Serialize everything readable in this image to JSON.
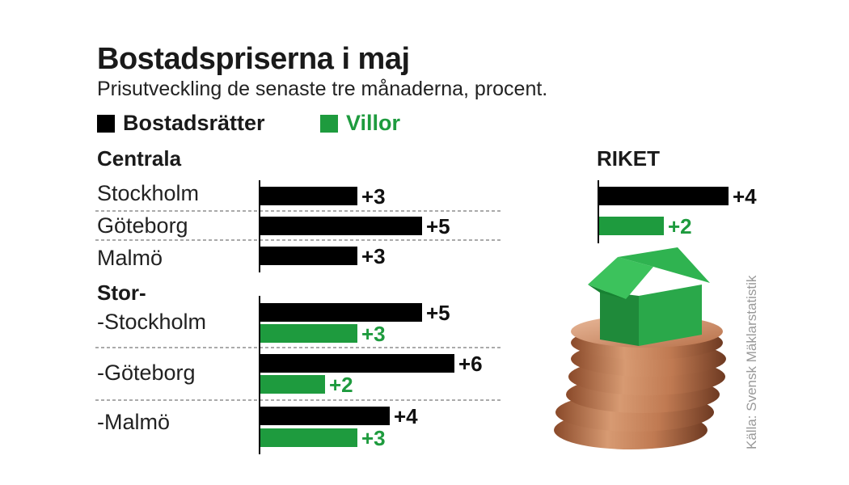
{
  "title": "Bostadspriserna i maj",
  "subtitle": "Prisutveckling de senaste tre månaderna, procent.",
  "source": "Källa: Svensk Mäklarstatistik",
  "colors": {
    "bostadsratter": "#000000",
    "villor": "#1e9b3e"
  },
  "legend": [
    {
      "label": "Bostadsrätter",
      "key": "bostadsratter"
    },
    {
      "label": "Villor",
      "key": "villor"
    }
  ],
  "chart_data": {
    "type": "bar",
    "orientation": "horizontal",
    "title": "Bostadspriserna i maj",
    "subtitle": "Prisutveckling de senaste tre månaderna, procent.",
    "legend": [
      "Bostadsrätter",
      "Villor"
    ],
    "groups": [
      {
        "label": "Centrala",
        "rows": [
          {
            "label": "Stockholm",
            "bostadsratter": 3
          },
          {
            "label": "Göteborg",
            "bostadsratter": 5
          },
          {
            "label": "Malmö",
            "bostadsratter": 3
          }
        ]
      },
      {
        "label": "Stor-",
        "rows": [
          {
            "label": "-Stockholm",
            "bostadsratter": 5,
            "villor": 3
          },
          {
            "label": "-Göteborg",
            "bostadsratter": 6,
            "villor": 2
          },
          {
            "label": "-Malmö",
            "bostadsratter": 4,
            "villor": 3
          }
        ]
      },
      {
        "label": "RIKET",
        "rows": [
          {
            "label": "",
            "bostadsratter": 4,
            "villor": 2
          }
        ]
      }
    ]
  }
}
